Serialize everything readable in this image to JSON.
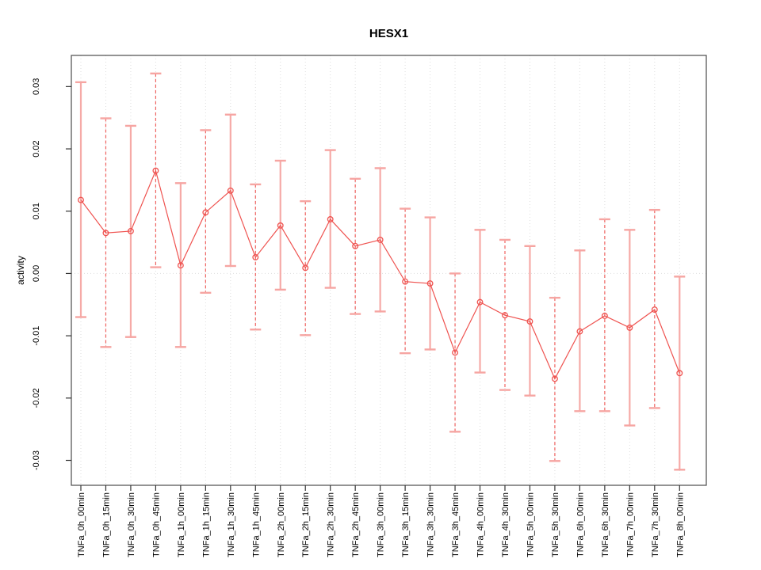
{
  "figure": {
    "title": "HESX1",
    "ylabel": "activity"
  },
  "chart_data": {
    "type": "line",
    "title": "HESX1",
    "xlabel": "",
    "ylabel": "activity",
    "legend": "none",
    "grid": "dotted vertical line at each category; dotted horizontal line at y=0",
    "marker": "open-circle",
    "error_bars": true,
    "ylim": [
      -0.034,
      0.035
    ],
    "ytick_values": [
      -0.03,
      -0.02,
      -0.01,
      0.0,
      0.01,
      0.02,
      0.03
    ],
    "ytick_labels": [
      "-0.03",
      "-0.02",
      "-0.01",
      "0.00",
      "0.01",
      "0.02",
      "0.03"
    ],
    "categories": [
      "TNFa_0h_00min",
      "TNFa_0h_15min",
      "TNFa_0h_30min",
      "TNFa_0h_45min",
      "TNFa_1h_00min",
      "TNFa_1h_15min",
      "TNFa_1h_30min",
      "TNFa_1h_45min",
      "TNFa_2h_00min",
      "TNFa_2h_15min",
      "TNFa_2h_30min",
      "TNFa_2h_45min",
      "TNFa_3h_00min",
      "TNFa_3h_15min",
      "TNFa_3h_30min",
      "TNFa_3h_45min",
      "TNFa_4h_00min",
      "TNFa_4h_30min",
      "TNFa_5h_00min",
      "TNFa_5h_30min",
      "TNFa_6h_00min",
      "TNFa_6h_30min",
      "TNFa_7h_00min",
      "TNFa_7h_30min",
      "TNFa_8h_00min"
    ],
    "series": [
      {
        "name": "HESX1 activity",
        "values": [
          0.0118,
          0.0065,
          0.0068,
          0.0165,
          0.0013,
          0.0098,
          0.0133,
          0.0026,
          0.0077,
          0.0009,
          0.0087,
          0.0044,
          0.0054,
          -0.0013,
          -0.0016,
          -0.0127,
          -0.0046,
          -0.0067,
          -0.0077,
          -0.0169,
          -0.0093,
          -0.0068,
          -0.0087,
          -0.0058,
          -0.016
        ],
        "error_low": [
          -0.007,
          -0.0118,
          -0.0102,
          0.001,
          -0.0118,
          -0.0031,
          0.0012,
          -0.009,
          -0.0026,
          -0.0099,
          -0.0023,
          -0.0065,
          -0.0061,
          -0.0128,
          -0.0122,
          -0.0254,
          -0.0159,
          -0.0187,
          -0.0196,
          -0.0301,
          -0.0221,
          -0.0221,
          -0.0244,
          -0.0216,
          -0.0315
        ],
        "error_high": [
          0.0307,
          0.0249,
          0.0237,
          0.0321,
          0.0145,
          0.023,
          0.0255,
          0.0143,
          0.0181,
          0.0116,
          0.0198,
          0.0152,
          0.0169,
          0.0104,
          0.009,
          0.0,
          0.007,
          0.0054,
          0.0044,
          -0.0039,
          0.0037,
          0.0087,
          0.007,
          0.0102,
          -0.0005
        ]
      }
    ],
    "colors": {
      "series_line": "#ef5350",
      "marker_stroke": "#ef5350",
      "errorbar_pale": "#f6aaa7",
      "errorbar_dashed": "#ef6360",
      "errorbar_cap": "#f6a5a2",
      "grid": "#dedede",
      "box": "#4b4b4b",
      "tick": "#333333",
      "text": "#000000"
    }
  }
}
